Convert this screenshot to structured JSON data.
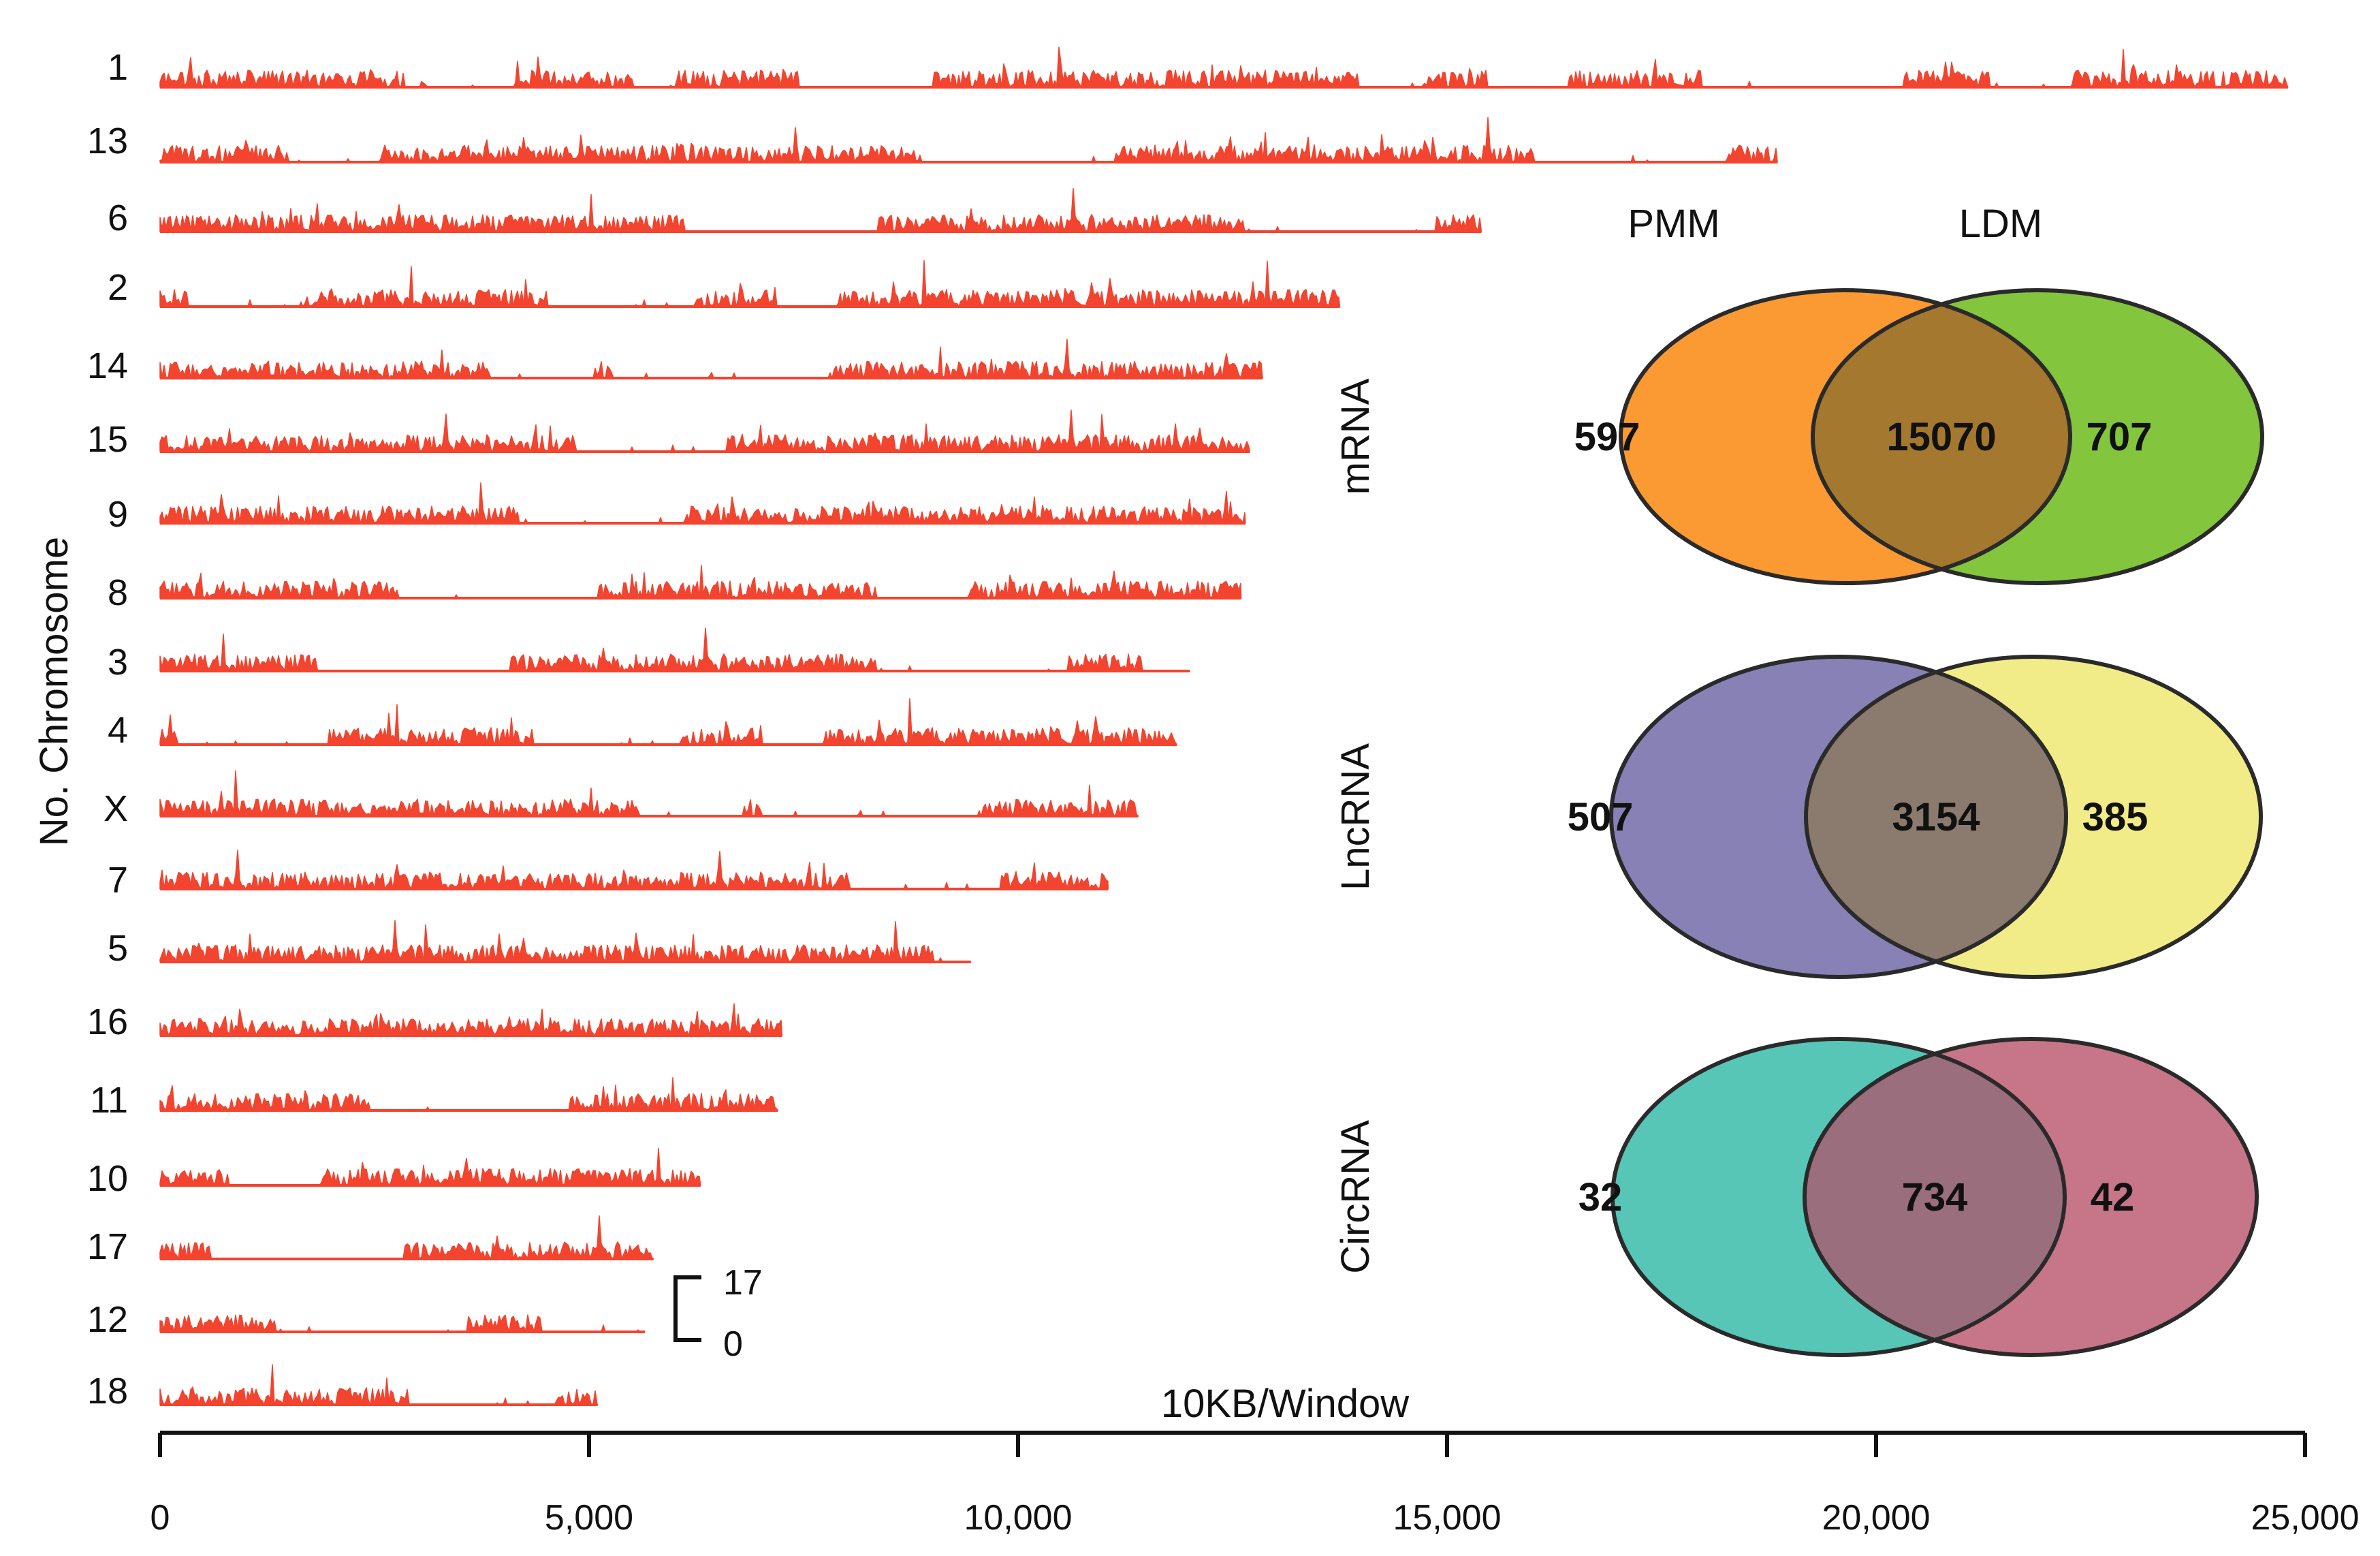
{
  "chart_data": [
    {
      "type": "area",
      "title": "",
      "xlabel": "10KB/Window",
      "ylabel": "No. Chromosome",
      "xlim": [
        0,
        25000
      ],
      "x_ticks": [
        0,
        5000,
        10000,
        15000,
        20000,
        25000
      ],
      "x_tick_labels": [
        "0",
        "5,000",
        "10,000",
        "15,000",
        "20,000",
        "25,000"
      ],
      "scale_bar": {
        "min": 0,
        "max": 17,
        "min_label": "0",
        "max_label": "17"
      },
      "series_color": "#f2442f",
      "chromosomes": [
        {
          "name": "1",
          "length": 24800
        },
        {
          "name": "13",
          "length": 18850
        },
        {
          "name": "6",
          "length": 15400
        },
        {
          "name": "2",
          "length": 13750
        },
        {
          "name": "14",
          "length": 12850
        },
        {
          "name": "15",
          "length": 12700
        },
        {
          "name": "9",
          "length": 12650
        },
        {
          "name": "8",
          "length": 12600
        },
        {
          "name": "3",
          "length": 12000
        },
        {
          "name": "4",
          "length": 11850
        },
        {
          "name": "X",
          "length": 11400
        },
        {
          "name": "7",
          "length": 11050
        },
        {
          "name": "5",
          "length": 9450
        },
        {
          "name": "16",
          "length": 7250
        },
        {
          "name": "11",
          "length": 7200
        },
        {
          "name": "10",
          "length": 6300
        },
        {
          "name": "17",
          "length": 5750
        },
        {
          "name": "12",
          "length": 5650
        },
        {
          "name": "18",
          "length": 5100
        }
      ]
    },
    {
      "type": "venn",
      "set_labels": [
        "PMM",
        "LDM"
      ],
      "rows": [
        {
          "name": "mRNA",
          "left_only": 597,
          "both": 15070,
          "right_only": 707,
          "left_color": "#fb9a32",
          "right_color": "#83c53c",
          "overlap_color": "#a4782e"
        },
        {
          "name": "LncRNA",
          "left_only": 507,
          "both": 3154,
          "right_only": 385,
          "left_color": "#8781b6",
          "right_color": "#f2ec88",
          "overlap_color": "#8b7b6e"
        },
        {
          "name": "CircRNA",
          "left_only": 32,
          "both": 734,
          "right_only": 42,
          "left_color": "#58c6b6",
          "right_color": "#c77588",
          "overlap_color": "#9b6e7e"
        }
      ]
    }
  ]
}
